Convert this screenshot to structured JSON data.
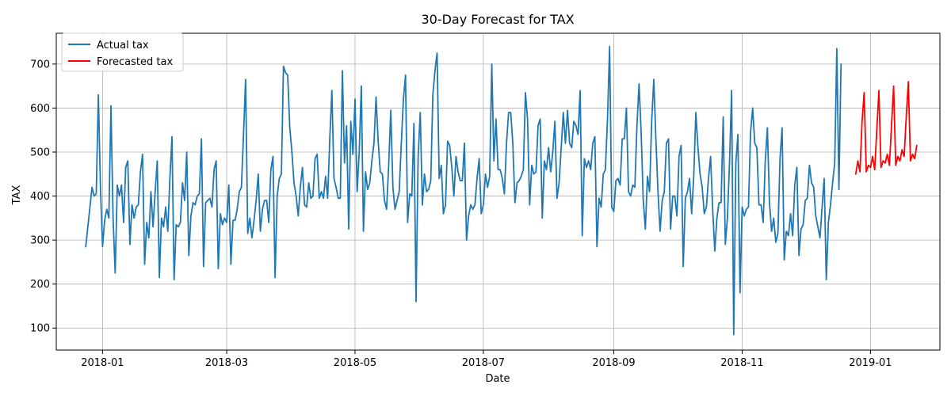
{
  "chart_data": {
    "type": "line",
    "title": "30-Day Forecast for TAX",
    "xlabel": "Date",
    "ylabel": "TAX",
    "grid": true,
    "legend_position": "top-left",
    "x_range": [
      "2017-12-10",
      "2019-02-03"
    ],
    "ylim": [
      50,
      770
    ],
    "x_ticks": [
      {
        "date": "2018-01-01",
        "label": "2018-01"
      },
      {
        "date": "2018-03-01",
        "label": "2018-03"
      },
      {
        "date": "2018-05-01",
        "label": "2018-05"
      },
      {
        "date": "2018-07-01",
        "label": "2018-07"
      },
      {
        "date": "2018-09-01",
        "label": "2018-09"
      },
      {
        "date": "2018-11-01",
        "label": "2018-11"
      },
      {
        "date": "2019-01-01",
        "label": "2019-01"
      }
    ],
    "y_ticks": [
      100,
      200,
      300,
      400,
      500,
      600,
      700
    ],
    "series": [
      {
        "name": "Actual tax",
        "color": "#1f77b4",
        "start_date": "2017-12-24",
        "values": [
          285,
          330,
          375,
          420,
          400,
          405,
          630,
          420,
          285,
          345,
          370,
          350,
          605,
          350,
          225,
          425,
          400,
          425,
          340,
          465,
          480,
          290,
          380,
          350,
          375,
          380,
          455,
          495,
          245,
          340,
          305,
          410,
          330,
          410,
          480,
          215,
          350,
          330,
          375,
          320,
          440,
          535,
          210,
          335,
          330,
          340,
          430,
          390,
          500,
          265,
          355,
          385,
          380,
          400,
          405,
          530,
          240,
          385,
          390,
          395,
          375,
          460,
          480,
          235,
          360,
          335,
          350,
          340,
          425,
          245,
          345,
          345,
          370,
          410,
          420,
          540,
          665,
          315,
          350,
          305,
          345,
          390,
          450,
          320,
          370,
          390,
          390,
          340,
          460,
          490,
          215,
          400,
          440,
          450,
          695,
          680,
          675,
          555,
          500,
          430,
          400,
          355,
          420,
          465,
          380,
          375,
          430,
          395,
          400,
          485,
          495,
          395,
          410,
          395,
          445,
          395,
          530,
          640,
          440,
          420,
          395,
          395,
          685,
          475,
          560,
          325,
          570,
          495,
          620,
          410,
          500,
          650,
          320,
          455,
          415,
          430,
          480,
          520,
          625,
          525,
          455,
          450,
          390,
          370,
          470,
          595,
          420,
          370,
          390,
          410,
          520,
          620,
          675,
          340,
          405,
          400,
          565,
          160,
          490,
          590,
          380,
          450,
          410,
          415,
          435,
          630,
          685,
          725,
          440,
          470,
          360,
          380,
          525,
          515,
          465,
          400,
          490,
          455,
          435,
          435,
          520,
          300,
          355,
          380,
          370,
          380,
          440,
          485,
          360,
          380,
          450,
          420,
          445,
          700,
          480,
          575,
          460,
          460,
          440,
          405,
          520,
          590,
          590,
          520,
          385,
          430,
          435,
          445,
          460,
          635,
          575,
          380,
          470,
          450,
          455,
          560,
          575,
          350,
          480,
          460,
          510,
          455,
          500,
          570,
          395,
          430,
          510,
          590,
          520,
          595,
          520,
          510,
          570,
          560,
          540,
          640,
          310,
          485,
          465,
          480,
          460,
          520,
          535,
          285,
          395,
          375,
          450,
          460,
          575,
          740,
          375,
          365,
          435,
          440,
          425,
          530,
          530,
          600,
          410,
          400,
          425,
          420,
          560,
          655,
          545,
          390,
          325,
          445,
          410,
          570,
          665,
          530,
          410,
          320,
          390,
          410,
          520,
          530,
          325,
          400,
          400,
          355,
          490,
          515,
          240,
          395,
          410,
          440,
          360,
          445,
          590,
          510,
          450,
          420,
          360,
          375,
          440,
          490,
          370,
          275,
          350,
          385,
          385,
          580,
          290,
          350,
          475,
          640,
          85,
          475,
          540,
          180,
          375,
          355,
          370,
          375,
          545,
          600,
          520,
          510,
          380,
          380,
          340,
          480,
          555,
          385,
          320,
          350,
          295,
          315,
          485,
          555,
          255,
          320,
          310,
          360,
          310,
          425,
          465,
          265,
          325,
          335,
          390,
          395,
          470,
          430,
          420,
          355,
          330,
          305,
          375,
          440,
          210,
          340,
          380,
          430,
          475,
          735,
          415,
          700
        ]
      },
      {
        "name": "Forecasted tax",
        "color": "#ff0000",
        "start_date": "2018-12-25",
        "values": [
          450,
          480,
          455,
          570,
          635,
          455,
          470,
          465,
          490,
          460,
          550,
          640,
          465,
          480,
          475,
          495,
          470,
          560,
          650,
          470,
          490,
          480,
          505,
          490,
          580,
          660,
          480,
          495,
          485,
          515
        ]
      }
    ]
  }
}
